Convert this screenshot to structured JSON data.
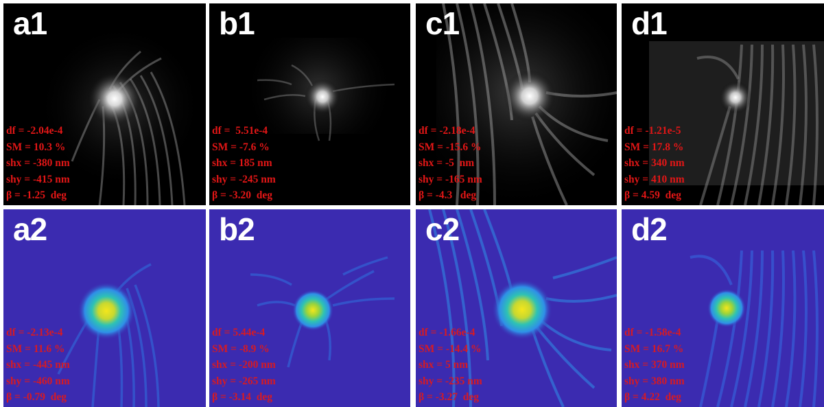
{
  "panels": [
    {
      "label": "a1",
      "df": "df = -2.04e-4",
      "sm": "SM = 10.3 %",
      "shx": "shx = -380 nm",
      "shy": "shy = -415 nm",
      "beta": "β = -1.25  deg"
    },
    {
      "label": "b1",
      "df": "df =  5.51e-4",
      "sm": "SM = -7.6 %",
      "shx": "shx = 185 nm",
      "shy": "shy = -245 nm",
      "beta": "β = -3.20  deg"
    },
    {
      "label": "c1",
      "df": "df = -2.18e-4",
      "sm": "SM = -15.6 %",
      "shx": "shx = -5  nm",
      "shy": "shy = -165 nm",
      "beta": "β = -4.3   deg"
    },
    {
      "label": "d1",
      "df": "df = -1.21e-5",
      "sm": "SM = 17.8 %",
      "shx": "shx = 340 nm",
      "shy": "shy = 410 nm",
      "beta": "β = 4.59  deg"
    },
    {
      "label": "a2",
      "df": "df = -2.13e-4",
      "sm": "SM = 11.6 %",
      "shx": "shx = -445 nm",
      "shy": "shy = -460 nm",
      "beta": "β = -0.79  deg"
    },
    {
      "label": "b2",
      "df": "df = 5.44e-4",
      "sm": "SM = -8.9 %",
      "shx": "shx = -200 nm",
      "shy": "shy = -265 nm",
      "beta": "β = -3.14  deg"
    },
    {
      "label": "c2",
      "df": "df = -1.66e-4",
      "sm": "SM = -14.4 %",
      "shx": "shx = 5 nm",
      "shy": "shy = -235 nm",
      "beta": "β = -3.27  deg"
    },
    {
      "label": "d2",
      "df": "df = -1.58e-4",
      "sm": "SM = 16.7 %",
      "shx": "shx = 370 nm",
      "shy": "shy = 380 nm",
      "beta": "β = 4.22  deg"
    }
  ],
  "colors": {
    "row1_background": "#000000",
    "row1_fringe": "#ffffff",
    "row2_background": "#3b2bb0",
    "row2_fringe": "#2f8fe8",
    "row2_peak": "#f2e01c",
    "parameter_text": "#e21616",
    "panel_label": "#ffffff"
  }
}
